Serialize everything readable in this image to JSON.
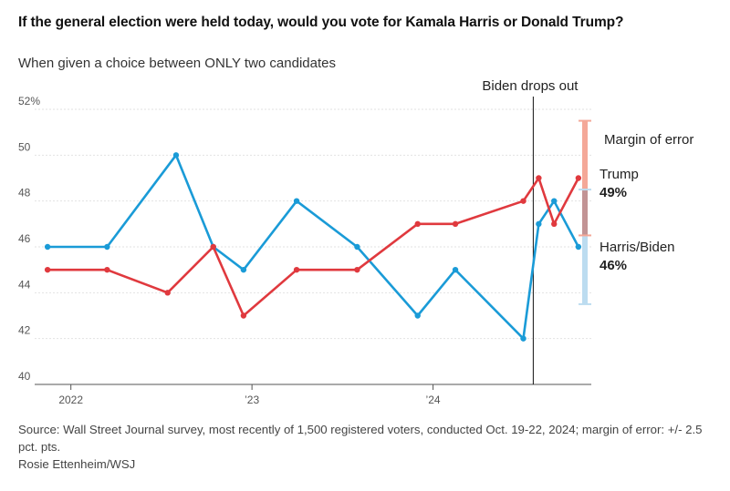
{
  "header": {
    "title": "If the general election were held today, would you vote for Kamala Harris or Donald Trump?",
    "subtitle": "When given a choice between ONLY two candidates"
  },
  "chart_data": {
    "type": "line",
    "title": "If the general election were held today, would you vote for Kamala Harris or Donald Trump?",
    "subtitle": "When given a choice between ONLY two candidates",
    "y_unit": "%",
    "ylim": [
      40,
      52
    ],
    "y_ticks": [
      40,
      42,
      44,
      46,
      48,
      50,
      52
    ],
    "y_tick_labels": [
      "40",
      "42",
      "44",
      "46",
      "48",
      "50",
      "52%"
    ],
    "x_ticks": [
      {
        "date": "2022-01-01",
        "label": "2022"
      },
      {
        "date": "2023-01-01",
        "label": "’23"
      },
      {
        "date": "2024-01-01",
        "label": "’24"
      }
    ],
    "grid": true,
    "series": [
      {
        "name": "Harris/Biden",
        "color": "#1a9bd7",
        "end_label": "46%",
        "points": [
          {
            "date": "2021-11-15",
            "value": 46
          },
          {
            "date": "2022-03-15",
            "value": 46
          },
          {
            "date": "2022-08-01",
            "value": 50
          },
          {
            "date": "2022-10-15",
            "value": 46
          },
          {
            "date": "2022-12-15",
            "value": 45
          },
          {
            "date": "2023-04-01",
            "value": 48
          },
          {
            "date": "2023-08-01",
            "value": 46
          },
          {
            "date": "2023-12-01",
            "value": 43
          },
          {
            "date": "2024-02-15",
            "value": 45
          },
          {
            "date": "2024-07-01",
            "value": 42
          },
          {
            "date": "2024-08-01",
            "value": 47
          },
          {
            "date": "2024-09-01",
            "value": 48
          },
          {
            "date": "2024-10-20",
            "value": 46
          }
        ]
      },
      {
        "name": "Trump",
        "color": "#e0393e",
        "end_label": "49%",
        "points": [
          {
            "date": "2021-11-15",
            "value": 45
          },
          {
            "date": "2022-03-15",
            "value": 45
          },
          {
            "date": "2022-07-15",
            "value": 44
          },
          {
            "date": "2022-10-15",
            "value": 46
          },
          {
            "date": "2022-12-15",
            "value": 43
          },
          {
            "date": "2023-04-01",
            "value": 45
          },
          {
            "date": "2023-08-01",
            "value": 45
          },
          {
            "date": "2023-12-01",
            "value": 47
          },
          {
            "date": "2024-02-15",
            "value": 47
          },
          {
            "date": "2024-07-01",
            "value": 48
          },
          {
            "date": "2024-08-01",
            "value": 49
          },
          {
            "date": "2024-09-01",
            "value": 47
          },
          {
            "date": "2024-10-20",
            "value": 49
          }
        ]
      }
    ],
    "annotations": {
      "event": {
        "label": "Biden drops out",
        "date": "2024-07-21"
      },
      "margin_of_error": {
        "label": "Margin of error",
        "trump_range": [
          46.5,
          51.5
        ],
        "harris_range": [
          43.5,
          48.5
        ],
        "colors": {
          "trump": "#f4a898",
          "harris": "#bcdcf0",
          "overlap": "#c29495"
        }
      }
    }
  },
  "footer": {
    "source": "Source: Wall Street Journal survey, most recently of 1,500 registered voters, conducted Oct. 19-22, 2024; margin of error: +/- 2.5 pct. pts.",
    "credit": "Rosie Ettenheim/WSJ"
  }
}
